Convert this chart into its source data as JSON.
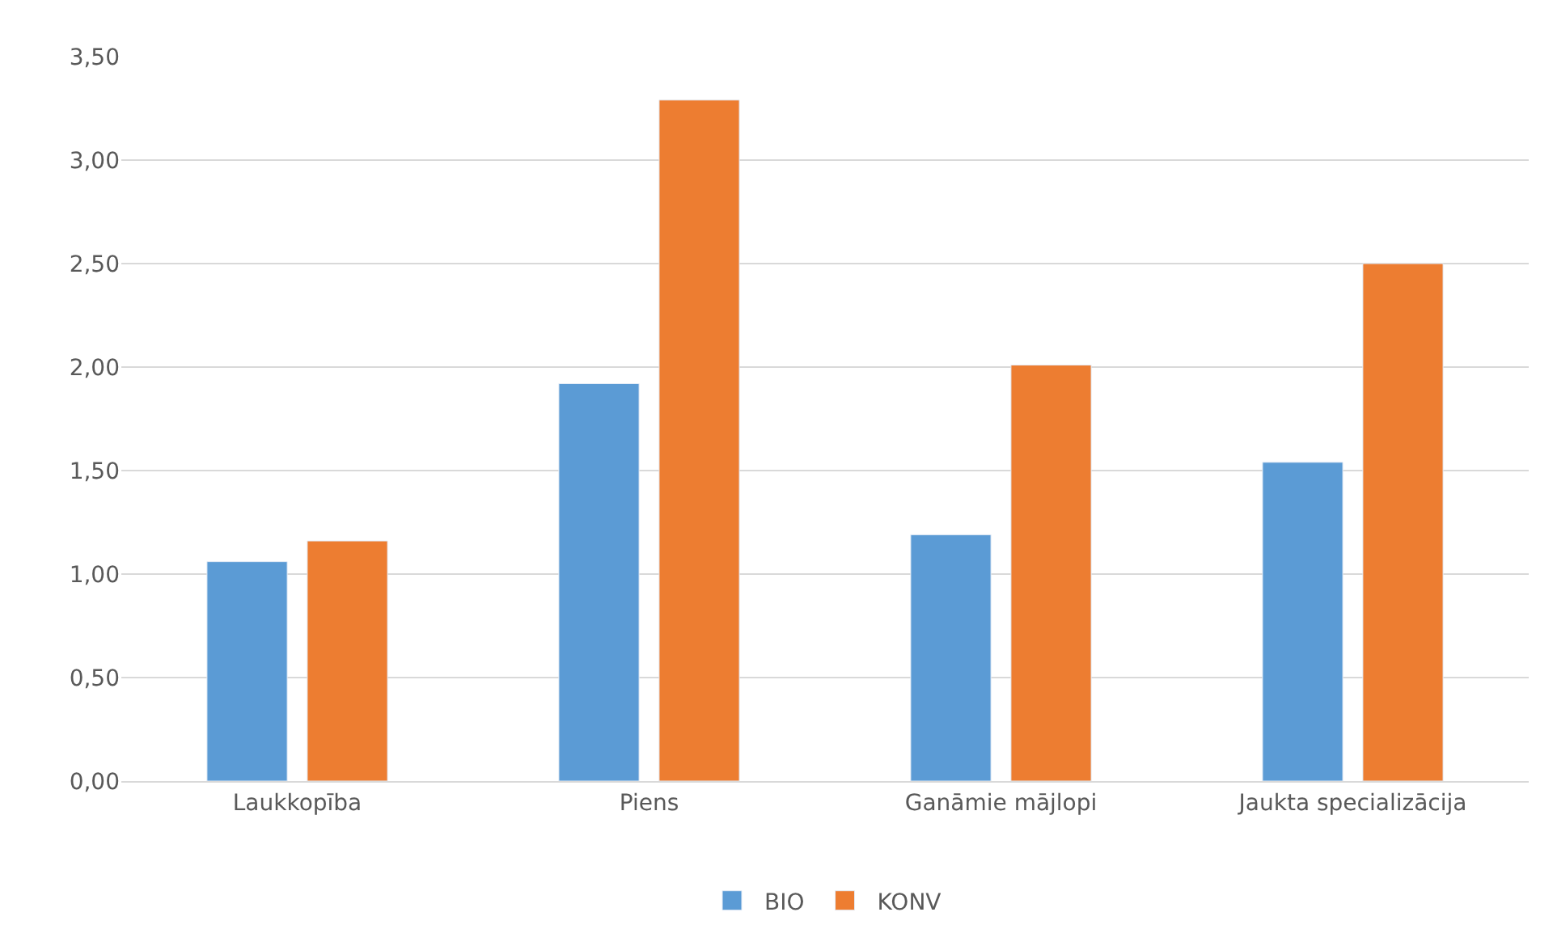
{
  "chart_data": {
    "type": "bar",
    "categories": [
      "Laukkopība",
      "Piens",
      "Ganāmie mājlopi",
      "Jaukta specializācija"
    ],
    "series": [
      {
        "name": "BIO",
        "color": "#5b9bd5",
        "values": [
          1.06,
          1.92,
          1.19,
          1.54
        ]
      },
      {
        "name": "KONV",
        "color": "#ed7d31",
        "values": [
          1.16,
          3.29,
          2.01,
          2.5
        ]
      }
    ],
    "ylim": [
      0,
      3.5
    ],
    "yticks": [
      {
        "value": 0,
        "label": "0,00"
      },
      {
        "value": 0.5,
        "label": "0,50"
      },
      {
        "value": 1,
        "label": "1,00"
      },
      {
        "value": 1.5,
        "label": "1,50"
      },
      {
        "value": 2,
        "label": "2,00"
      },
      {
        "value": 2.5,
        "label": "2,50"
      },
      {
        "value": 3,
        "label": "3,00"
      },
      {
        "value": 3.5,
        "label": "3,50"
      }
    ],
    "grid": "y",
    "legend": "bottom"
  }
}
